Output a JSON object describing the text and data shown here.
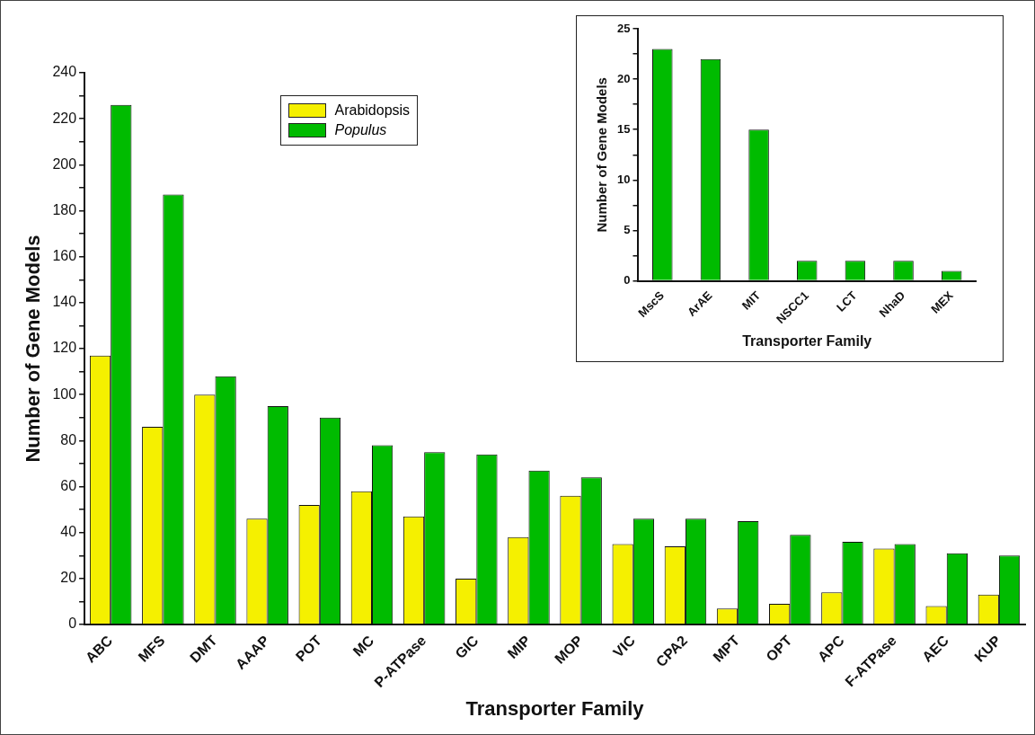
{
  "chart_data": [
    {
      "type": "bar",
      "xlabel": "Transporter Family",
      "ylabel": "Number of Gene Models",
      "categories": [
        "ABC",
        "MFS",
        "DMT",
        "AAAP",
        "POT",
        "MC",
        "P-ATPase",
        "GIC",
        "MIP",
        "MOP",
        "VIC",
        "CPA2",
        "MPT",
        "OPT",
        "APC",
        "F-ATPase",
        "AEC",
        "KUP"
      ],
      "series": [
        {
          "name": "Arabidopsis",
          "color": "#f5f000",
          "values": [
            117,
            86,
            100,
            46,
            52,
            58,
            47,
            20,
            38,
            56,
            35,
            34,
            7,
            9,
            14,
            33,
            8,
            13
          ]
        },
        {
          "name": "Populus",
          "color": "#00bb00",
          "values": [
            226,
            187,
            108,
            95,
            90,
            78,
            75,
            74,
            67,
            64,
            46,
            46,
            45,
            39,
            36,
            35,
            31,
            30
          ]
        }
      ],
      "ylim": [
        0,
        240
      ],
      "yticks": [
        0,
        {
          "value": 10,
          "label": null
        },
        20,
        {
          "value": 30,
          "label": null
        },
        40,
        {
          "value": 50,
          "label": null
        },
        60,
        {
          "value": 70,
          "label": null
        },
        80,
        {
          "value": 90,
          "label": null
        },
        100,
        {
          "value": 110,
          "label": null
        },
        120,
        {
          "value": 130,
          "label": null
        },
        140,
        {
          "value": 150,
          "label": null
        },
        160,
        {
          "value": 170,
          "label": null
        },
        180,
        {
          "value": 190,
          "label": null
        },
        200,
        {
          "value": 210,
          "label": null
        },
        220,
        {
          "value": 230,
          "label": null
        },
        240
      ],
      "grid": false,
      "legend": "top"
    },
    {
      "type": "bar",
      "xlabel": "Transporter Family",
      "ylabel": "Number of Gene Models",
      "categories": [
        "MscS",
        "ArAE",
        "MIT",
        "NSCC1",
        "LCT",
        "NhaD",
        "MEX"
      ],
      "values": [
        23,
        22,
        15,
        2,
        2,
        2,
        1
      ],
      "color": "#00bb00",
      "ylim": [
        0,
        25
      ],
      "yticks": [
        0,
        {
          "value": 2.5,
          "label": null
        },
        5,
        {
          "value": 7.5,
          "label": null
        },
        10,
        {
          "value": 12.5,
          "label": null
        },
        15,
        {
          "value": 17.5,
          "label": null
        },
        20,
        {
          "value": 22.5,
          "label": null
        },
        25
      ],
      "grid": false
    }
  ]
}
